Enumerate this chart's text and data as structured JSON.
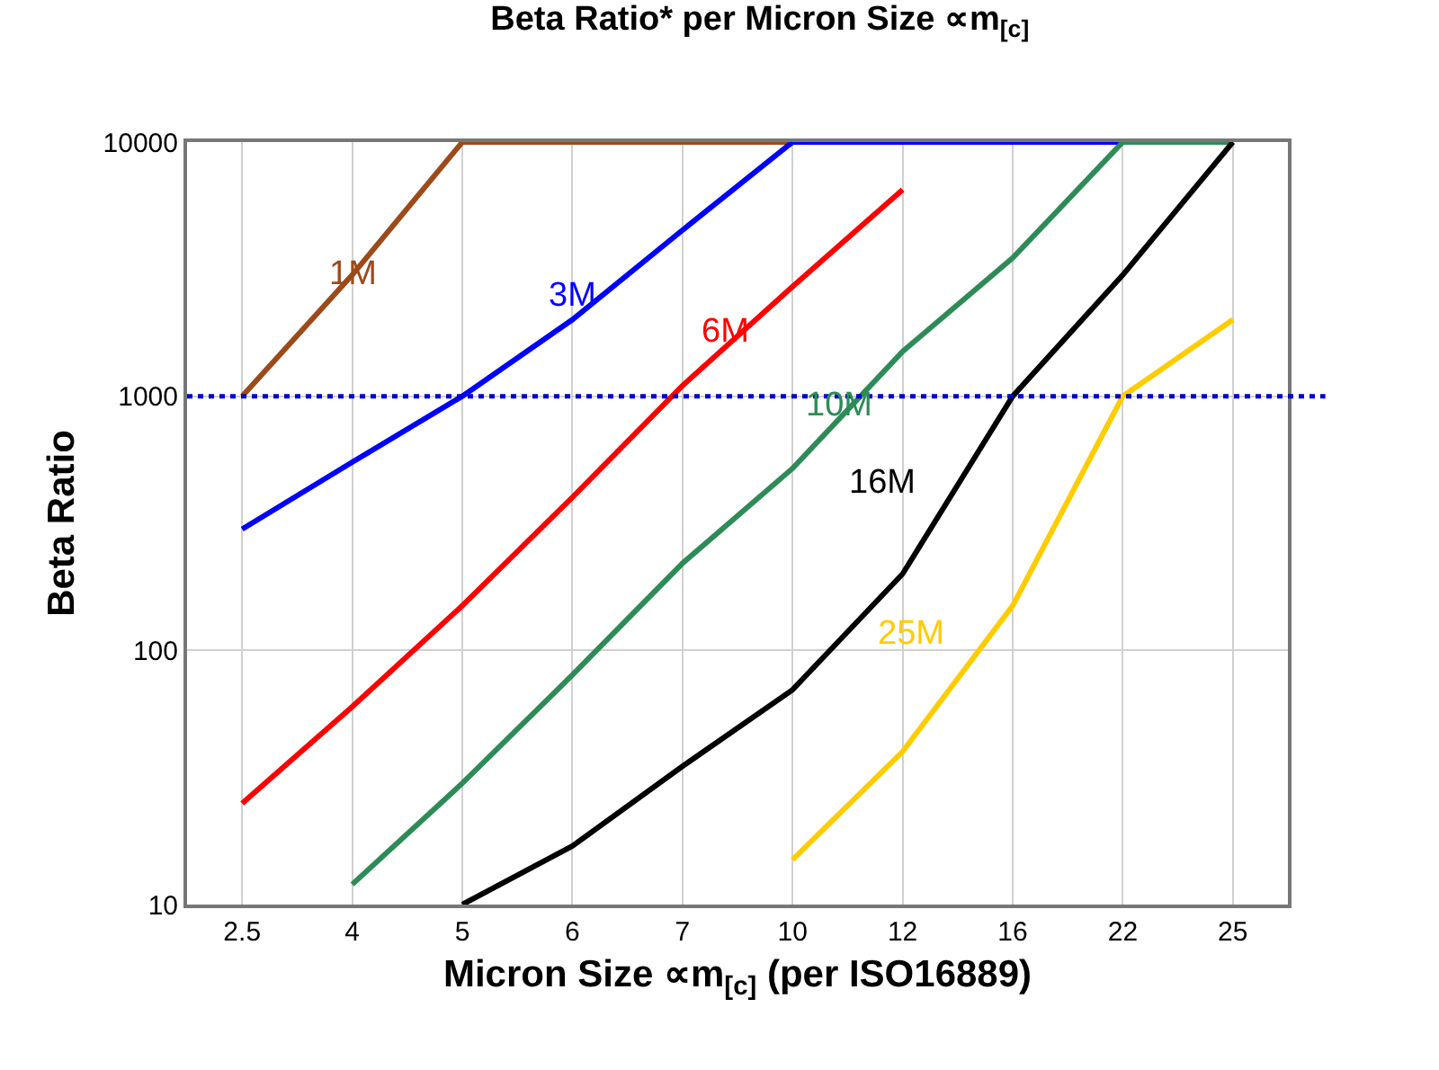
{
  "chart_data": {
    "type": "line",
    "title": "Beta Ratio* per Micron Size ∝m$_{[c]}$",
    "xlabel": "Micron Size ∝m$_{[c]}$ (per ISO16889)",
    "ylabel": "Beta Ratio",
    "categories": [
      "2.5",
      "4",
      "5",
      "6",
      "7",
      "10",
      "12",
      "16",
      "22",
      "25"
    ],
    "ylim": [
      10,
      10000
    ],
    "yticks": [
      10,
      100,
      1000,
      10000
    ],
    "log": "y",
    "grid": true,
    "legend": false,
    "marker": "none",
    "line_style": "solid",
    "series": [
      {
        "name": "1M",
        "color": "#9c4a1a",
        "values": [
          1000,
          3000,
          10000,
          10000,
          10000,
          10000,
          null,
          null,
          null,
          null
        ]
      },
      {
        "name": "3M",
        "color": "#0000ff",
        "values": [
          300,
          550,
          1000,
          2000,
          4500,
          10000,
          10000,
          10000,
          10000,
          null
        ]
      },
      {
        "name": "6M",
        "color": "#ff0000",
        "values": [
          25,
          60,
          150,
          400,
          1100,
          2700,
          6500,
          null,
          null,
          null
        ]
      },
      {
        "name": "10M",
        "color": "#2e8b57",
        "values": [
          null,
          12,
          30,
          80,
          220,
          520,
          1500,
          3500,
          10000,
          10000
        ]
      },
      {
        "name": "16M",
        "color": "#000000",
        "values": [
          null,
          null,
          10,
          17,
          35,
          70,
          200,
          1000,
          3000,
          10000
        ]
      },
      {
        "name": "25M",
        "color": "#ffcc00",
        "values": [
          null,
          null,
          null,
          null,
          null,
          15,
          40,
          150,
          1000,
          2000
        ]
      }
    ],
    "ref_lines": [
      {
        "axis": "y",
        "value": 1000,
        "color": "#0000cc",
        "line_style": "dotted"
      }
    ]
  }
}
